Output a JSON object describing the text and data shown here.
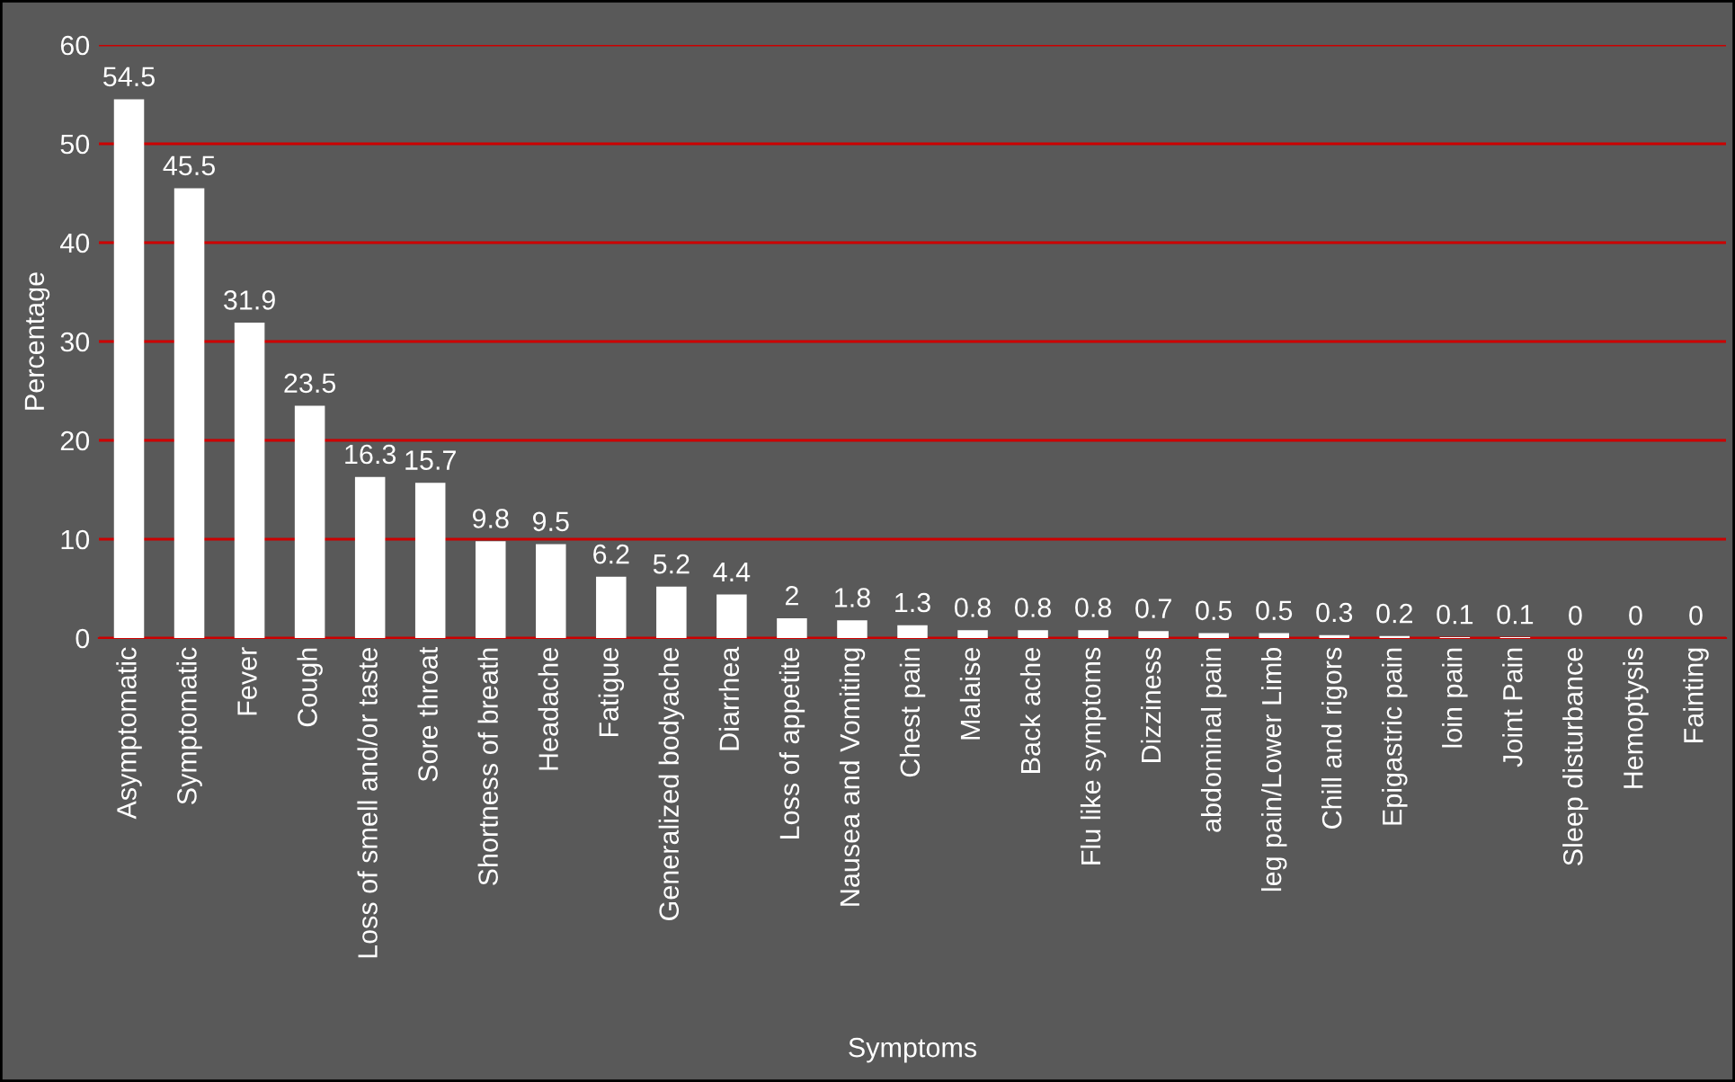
{
  "chart_data": {
    "type": "bar",
    "xlabel": "Symptoms",
    "ylabel": "Percentage",
    "categories": [
      "Asymptomatic",
      "Symptomatic",
      "Fever",
      "Cough",
      "Loss of smell and/or taste",
      "Sore throat",
      "Shortness of breath",
      "Headache",
      "Fatigue",
      "Generalized bodyache",
      "Diarrhea",
      "Loss of appetite",
      "Nausea and Vomiting",
      "Chest pain",
      "Malaise",
      "Back ache",
      "Flu like symptoms",
      "Dizziness",
      "abdominal pain",
      "leg pain/Lower Limb",
      "Chill and rigors",
      "Epigastric pain",
      "loin pain",
      "Joint Pain",
      "Sleep disturbance",
      "Hemoptysis",
      "Fainting"
    ],
    "values": [
      54.5,
      45.5,
      31.9,
      23.5,
      16.3,
      15.7,
      9.8,
      9.5,
      6.2,
      5.2,
      4.4,
      2,
      1.8,
      1.3,
      0.8,
      0.8,
      0.8,
      0.7,
      0.5,
      0.5,
      0.3,
      0.2,
      0.1,
      0.1,
      0,
      0,
      0
    ],
    "color": "#ffffff",
    "ylim": [
      0,
      60
    ],
    "yticks": [
      0,
      10,
      20,
      30,
      40,
      50,
      60
    ],
    "grid": "y",
    "data_labels": true
  }
}
